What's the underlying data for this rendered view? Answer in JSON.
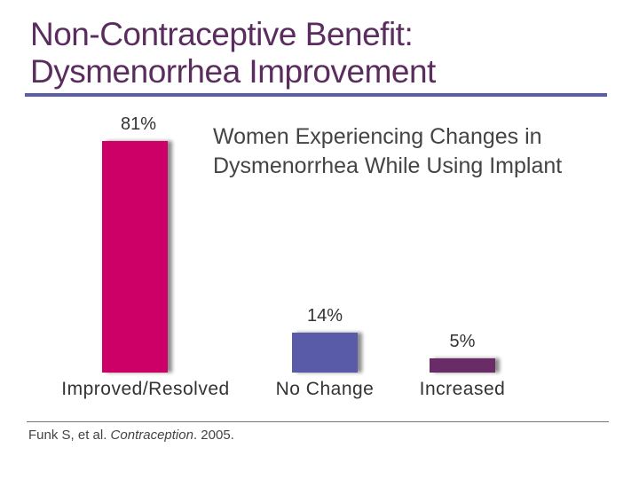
{
  "slide": {
    "title_line1": "Non-Contraceptive Benefit:",
    "title_line2": "Dysmenorrhea Improvement",
    "citation_authors": "Funk S, et al. ",
    "citation_journal": "Contraception",
    "citation_year": ". 2005."
  },
  "chart_data": {
    "type": "bar",
    "title_line1": "Women Experiencing Changes in",
    "title_line2": "Dysmenorrhea While Using Implant",
    "categories": [
      "Improved/Resolved",
      "No Change",
      "Increased"
    ],
    "values": [
      81,
      14,
      5
    ],
    "value_labels": [
      "81%",
      "14%",
      "5%"
    ],
    "colors": [
      "#cc0066",
      "#5a5ba8",
      "#6a2c66"
    ],
    "unit": "%",
    "grid": false
  }
}
